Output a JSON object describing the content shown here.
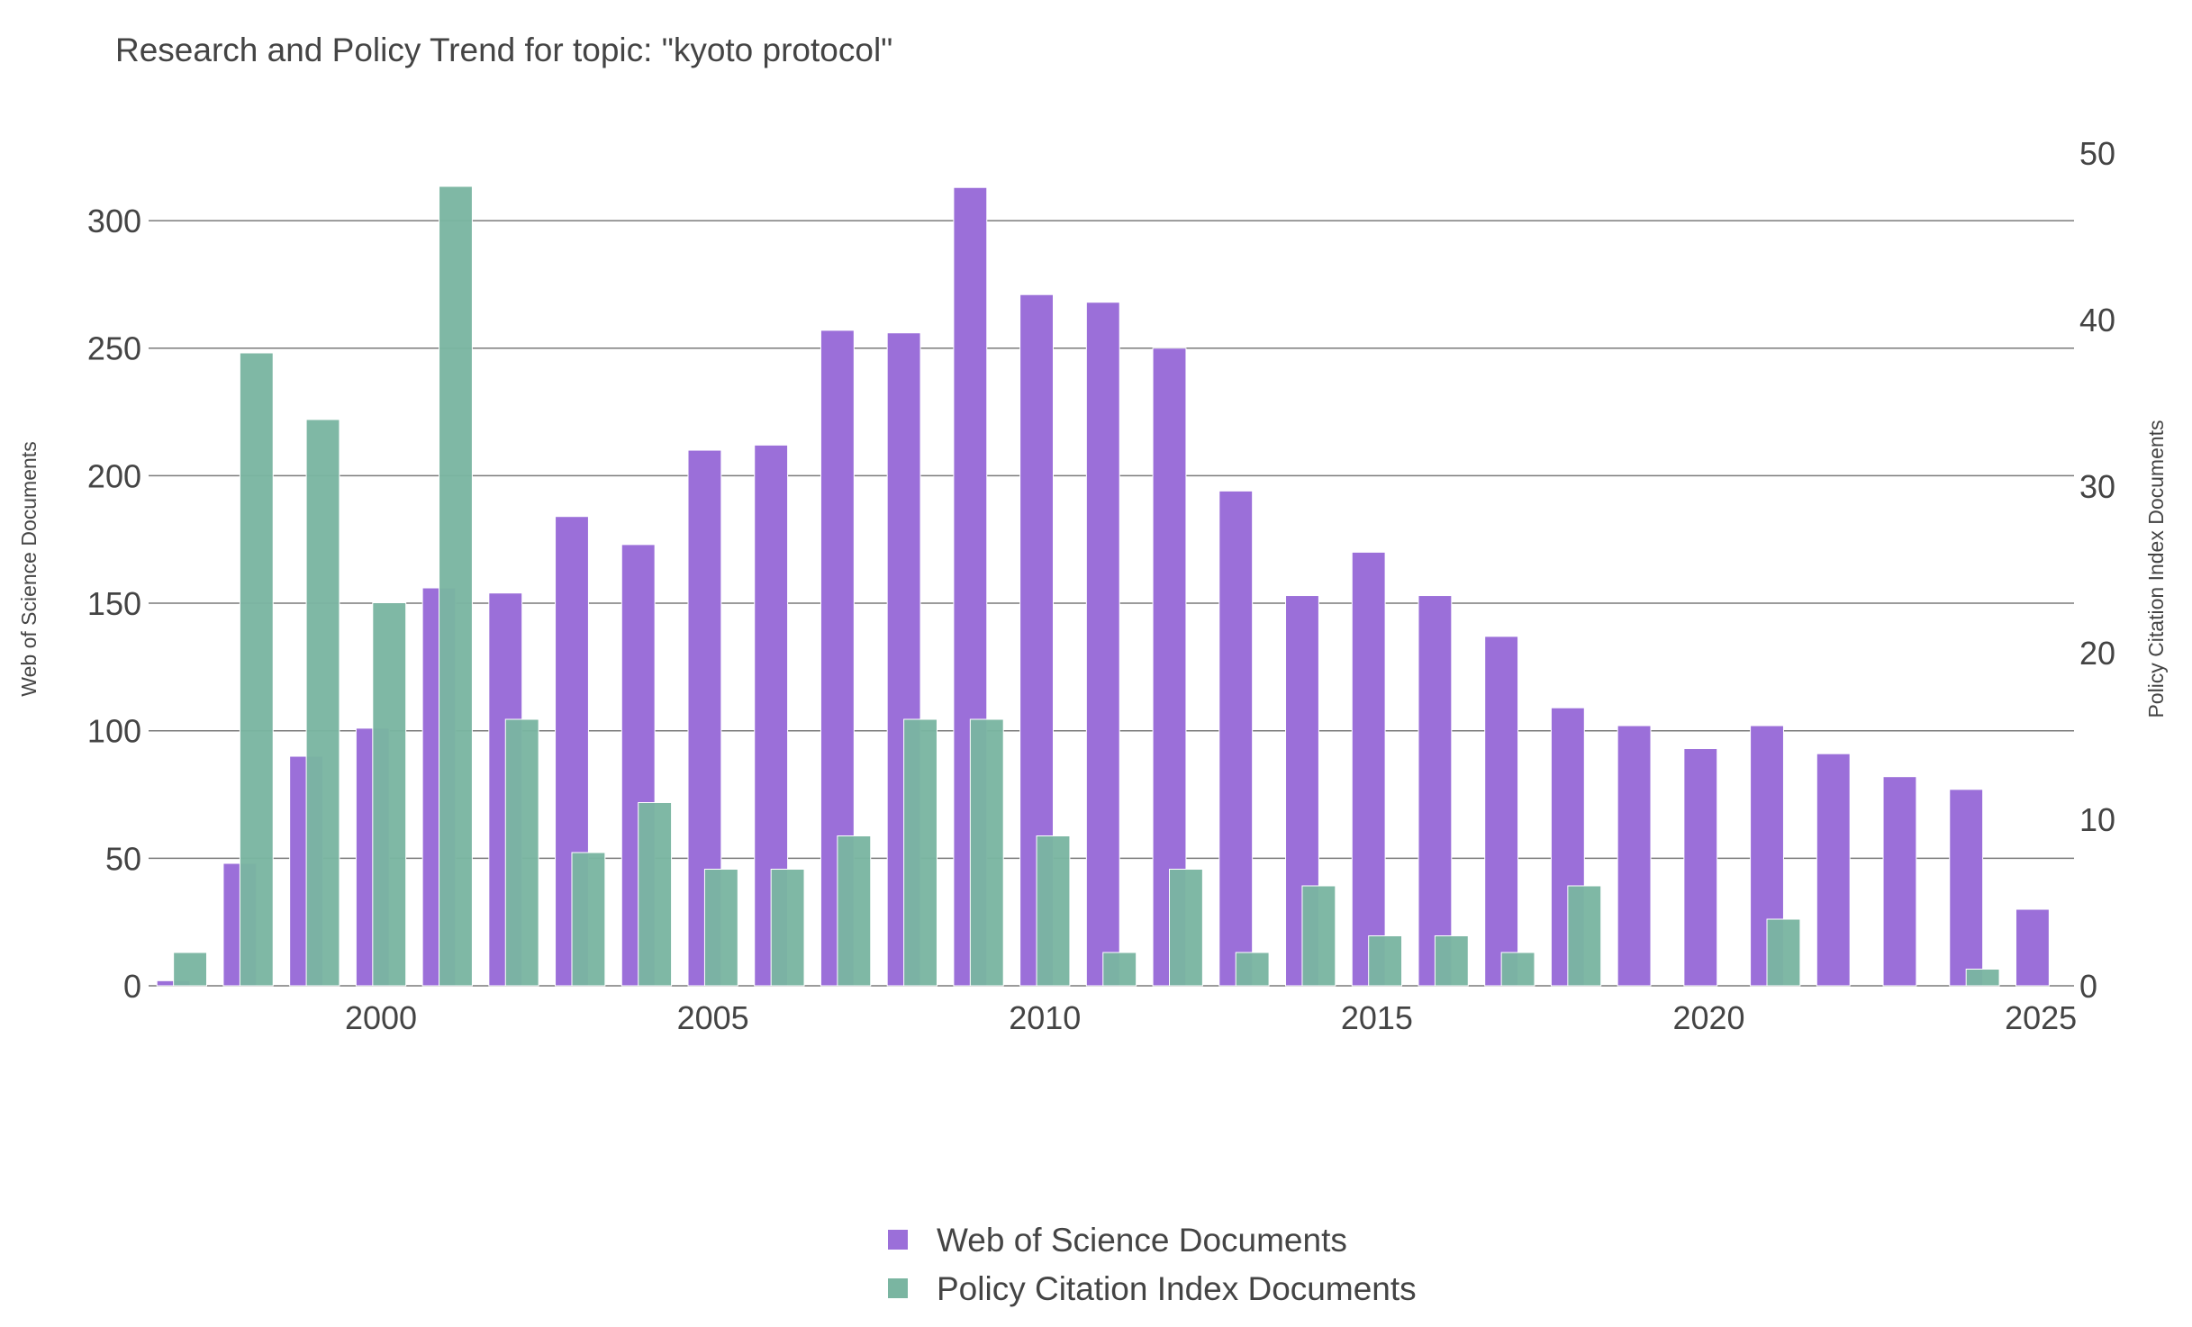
{
  "chart_data": {
    "type": "bar",
    "title": "Research and Policy Trend for topic: \"kyoto protocol\"",
    "x": [
      1997,
      1998,
      1999,
      2000,
      2001,
      2002,
      2003,
      2004,
      2005,
      2006,
      2007,
      2008,
      2009,
      2010,
      2011,
      2012,
      2013,
      2014,
      2015,
      2016,
      2017,
      2018,
      2019,
      2020,
      2021,
      2022,
      2023,
      2024,
      2025
    ],
    "xlim": [
      1996.5,
      2025.5
    ],
    "x_ticks": [
      2000,
      2005,
      2010,
      2015,
      2020,
      2025
    ],
    "series": [
      {
        "name": "Web of Science Documents",
        "axis": "left",
        "color": "#9b6fd9",
        "values": [
          2,
          48,
          90,
          101,
          156,
          154,
          184,
          173,
          210,
          212,
          257,
          256,
          313,
          271,
          268,
          250,
          194,
          153,
          170,
          153,
          137,
          109,
          102,
          93,
          102,
          91,
          82,
          77,
          30
        ]
      },
      {
        "name": "Policy Citation Index Documents",
        "axis": "right",
        "color": "#7ab5a1",
        "values": [
          2,
          38,
          34,
          23,
          48,
          16,
          8,
          11,
          7,
          7,
          9,
          16,
          16,
          9,
          2,
          7,
          2,
          6,
          3,
          3,
          2,
          6,
          0,
          0,
          4,
          0,
          0,
          1,
          0
        ]
      }
    ],
    "y_left": {
      "label": "Web of Science Documents",
      "ylim": [
        0,
        326.5
      ],
      "ticks": [
        0,
        50,
        100,
        150,
        200,
        250,
        300
      ]
    },
    "y_right": {
      "label": "Policy Citation Index Documents",
      "ylim": [
        0,
        50
      ],
      "ticks": [
        0,
        10,
        20,
        30,
        40,
        50
      ]
    },
    "grid": true,
    "legend": "bottom-center"
  }
}
